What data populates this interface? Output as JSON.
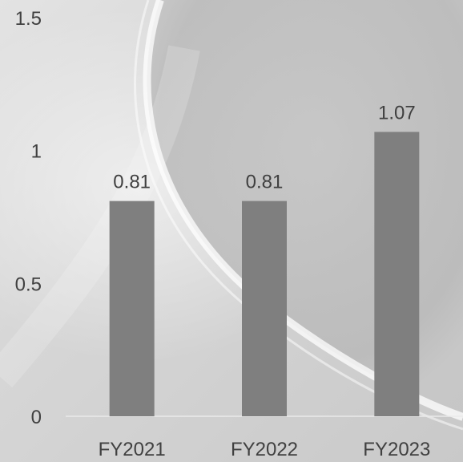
{
  "colors": {
    "bar": "#7f7f7f",
    "text": "#404040",
    "axis_line": "#eaeaea"
  },
  "chart_data": {
    "type": "bar",
    "categories": [
      "FY2021",
      "FY2022",
      "FY2023"
    ],
    "values": [
      0.81,
      0.81,
      1.07
    ],
    "data_labels": [
      "0.81",
      "0.81",
      "1.07"
    ],
    "yticks": [
      0,
      0.5,
      1,
      1.5
    ],
    "ytick_labels": [
      "0",
      "0.5",
      "1",
      "1.5"
    ],
    "ylim": [
      0,
      1.5
    ],
    "title": "",
    "xlabel": "",
    "ylabel": "",
    "grid": false,
    "legend": "none"
  }
}
